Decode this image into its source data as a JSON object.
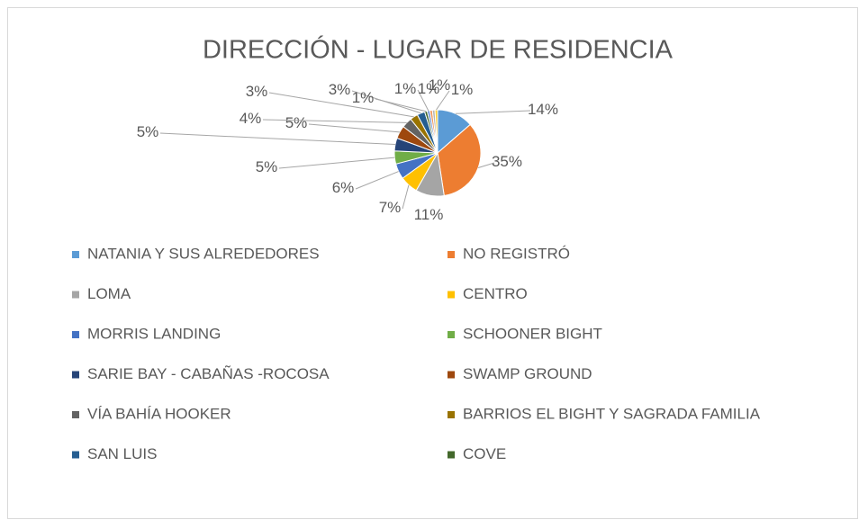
{
  "chart_data": {
    "type": "pie",
    "title": "DIRECCIÓN - LUGAR DE RESIDENCIA",
    "categories": [
      "NATANIA Y SUS ALREDEDORES",
      "NO REGISTRÓ",
      "LOMA",
      "CENTRO",
      "MORRIS LANDING",
      "SCHOONER BIGHT",
      "SARIE BAY - CABAÑAS -ROCOSA",
      "SWAMP GROUND",
      "VÍA BAHÍA HOOKER",
      "BARRIOS EL BIGHT Y  SAGRADA FAMILIA",
      "SAN LUIS",
      "COVE",
      null,
      null,
      null,
      null
    ],
    "values": [
      14,
      35,
      11,
      7,
      6,
      5,
      5,
      5,
      4,
      3,
      3,
      1,
      1,
      1,
      1,
      1
    ],
    "colors": [
      "#5B9BD5",
      "#ED7D31",
      "#A5A5A5",
      "#FFC000",
      "#4472C4",
      "#70AD47",
      "#264478",
      "#9E480E",
      "#636363",
      "#997300",
      "#255E91",
      "#43682B",
      "#698ED0",
      "#F1975A",
      "#B7B7B7",
      "#FFCD33"
    ],
    "legend": "bottom"
  }
}
